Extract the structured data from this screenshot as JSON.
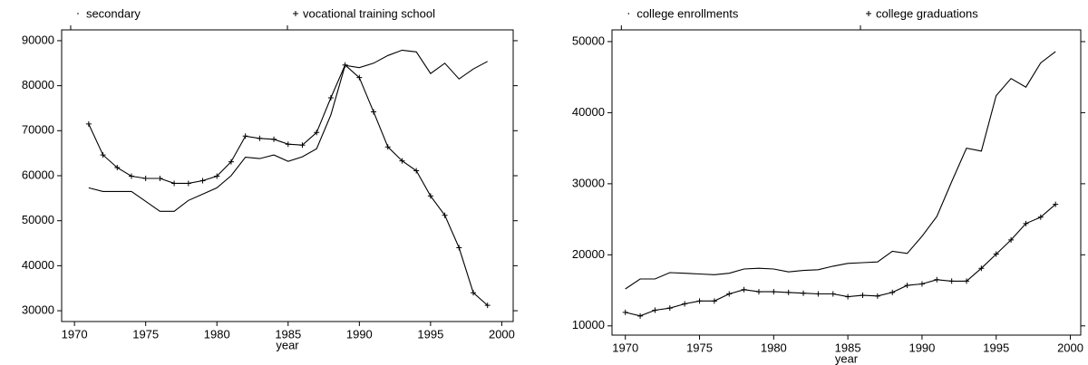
{
  "chart_data": [
    {
      "type": "line",
      "xlabel": "year",
      "x": [
        1971,
        1972,
        1973,
        1974,
        1975,
        1976,
        1977,
        1978,
        1979,
        1980,
        1981,
        1982,
        1983,
        1984,
        1985,
        1986,
        1987,
        1988,
        1989,
        1990,
        1991,
        1992,
        1993,
        1994,
        1995,
        1996,
        1997,
        1998,
        1999
      ],
      "series": [
        {
          "name": "secondary",
          "color": "#000000",
          "marker": "dot",
          "values": [
            57300,
            56500,
            56500,
            56500,
            54300,
            52100,
            52100,
            54500,
            55900,
            57300,
            60000,
            64100,
            63800,
            64600,
            63200,
            64200,
            66000,
            73500,
            84500,
            84000,
            85000,
            86700,
            87900,
            87500,
            82700,
            85000,
            81500,
            83700,
            85400
          ]
        },
        {
          "name": "vocational training school",
          "color": "#000000",
          "marker": "plus",
          "values": [
            71500,
            64600,
            61800,
            59900,
            59400,
            59400,
            58300,
            58300,
            58900,
            59900,
            63100,
            68800,
            68300,
            68100,
            67000,
            66800,
            69600,
            77300,
            84600,
            81800,
            74200,
            66400,
            63300,
            61100,
            55500,
            51200,
            44000,
            34000,
            31200
          ]
        }
      ],
      "xlim": [
        1969.1,
        2000.8
      ],
      "xticks": [
        1970,
        1975,
        1980,
        1985,
        1990,
        1995,
        2000
      ],
      "ylim": [
        27600,
        92400
      ],
      "yticks": [
        30000,
        40000,
        50000,
        60000,
        70000,
        80000,
        90000
      ]
    },
    {
      "type": "line",
      "xlabel": "year",
      "x": [
        1970,
        1971,
        1972,
        1973,
        1974,
        1975,
        1976,
        1977,
        1978,
        1979,
        1980,
        1981,
        1982,
        1983,
        1984,
        1985,
        1986,
        1987,
        1988,
        1989,
        1990,
        1991,
        1992,
        1993,
        1994,
        1995,
        1996,
        1997,
        1998,
        1999
      ],
      "series": [
        {
          "name": "college enrollments",
          "color": "#000000",
          "marker": "dot",
          "values": [
            15200,
            16600,
            16600,
            17500,
            17400,
            17300,
            17200,
            17400,
            18000,
            18100,
            18000,
            17600,
            17800,
            17900,
            18400,
            18800,
            18900,
            19000,
            20500,
            20200,
            22600,
            25400,
            30300,
            35000,
            34600,
            42400,
            44800,
            43600,
            47000,
            48600
          ]
        },
        {
          "name": "college graduations",
          "color": "#000000",
          "marker": "plus",
          "values": [
            11900,
            11400,
            12200,
            12500,
            13100,
            13500,
            13500,
            14500,
            15100,
            14800,
            14800,
            14700,
            14600,
            14500,
            14500,
            14100,
            14300,
            14200,
            14700,
            15700,
            15900,
            16500,
            16300,
            16300,
            18100,
            20100,
            22100,
            24400,
            25300,
            27100
          ]
        }
      ],
      "xlim": [
        1969.1,
        2000.7
      ],
      "xticks": [
        1970,
        1975,
        1980,
        1985,
        1990,
        1995,
        2000
      ],
      "ylim": [
        8700,
        51650
      ],
      "yticks": [
        10000,
        20000,
        30000,
        40000,
        50000
      ]
    }
  ]
}
